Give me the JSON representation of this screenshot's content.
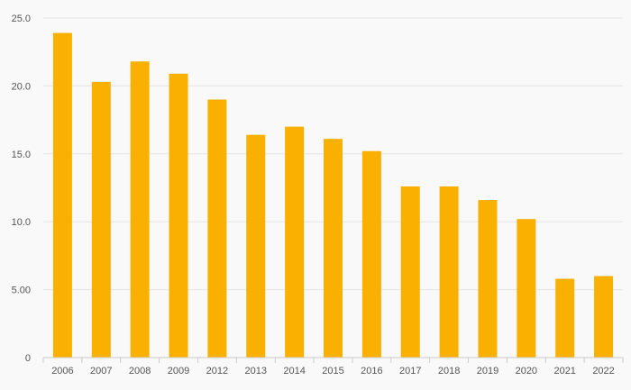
{
  "chart_data": {
    "type": "bar",
    "categories": [
      "2006",
      "2007",
      "2008",
      "2009",
      "2012",
      "2013",
      "2014",
      "2015",
      "2016",
      "2017",
      "2018",
      "2019",
      "2020",
      "2021",
      "2022"
    ],
    "series": [
      {
        "values": [
          23.9,
          20.3,
          21.8,
          20.9,
          19.0,
          16.4,
          17.0,
          16.1,
          15.2,
          12.6,
          12.6,
          11.6,
          10.2,
          5.8,
          6.0
        ]
      }
    ],
    "y_ticks": [
      "0",
      "5.00",
      "10.0",
      "15.0",
      "20.0",
      "25.0"
    ],
    "ylim": [
      0,
      25
    ],
    "grid": true,
    "colors": {
      "bar": "#f9b000",
      "grid": "#e6e6e6",
      "axis": "#cccccc",
      "background": "#f9f9f9"
    }
  }
}
